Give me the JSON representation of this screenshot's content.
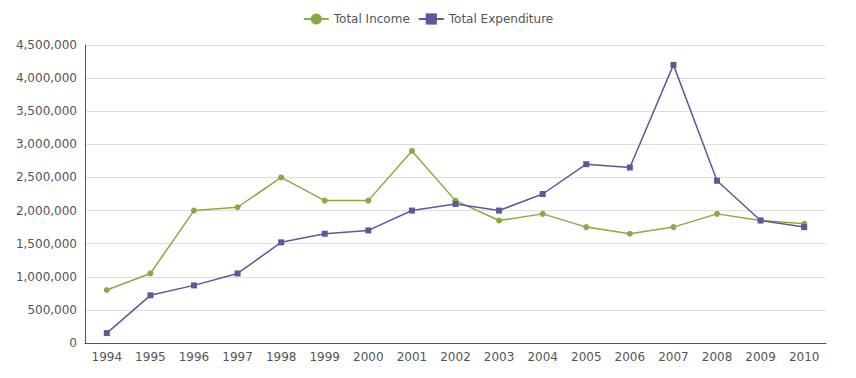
{
  "chart_data": {
    "type": "line",
    "categories": [
      "1994",
      "1995",
      "1996",
      "1997",
      "1998",
      "1999",
      "2000",
      "2001",
      "2002",
      "2003",
      "2004",
      "2005",
      "2006",
      "2007",
      "2008",
      "2009",
      "2010"
    ],
    "series": [
      {
        "name": "Total Income",
        "color": "#8aaa40",
        "marker": "circle",
        "values": [
          800000,
          1050000,
          2000000,
          2050000,
          2500000,
          2150000,
          2150000,
          2900000,
          2150000,
          1850000,
          1950000,
          1750000,
          1650000,
          1750000,
          1950000,
          1850000,
          1800000
        ]
      },
      {
        "name": "Total Expenditure",
        "color": "#5a5a9a",
        "marker": "square",
        "values": [
          150000,
          720000,
          870000,
          1050000,
          1520000,
          1650000,
          1700000,
          2000000,
          2100000,
          2000000,
          2250000,
          2700000,
          2650000,
          4200000,
          2450000,
          1850000,
          1750000
        ]
      }
    ],
    "ylim": [
      0,
      4500000
    ],
    "yticks": [
      0,
      {
        "value": 500000,
        "label": "500,000"
      },
      {
        "value": 1000000,
        "label": "1,000,000"
      },
      {
        "value": 1500000,
        "label": "1,500,000"
      },
      {
        "value": 2000000,
        "label": "2,000,000"
      },
      {
        "value": 2500000,
        "label": "2,500,000"
      },
      {
        "value": 3000000,
        "label": "3,000,000"
      },
      {
        "value": 3500000,
        "label": "3,500,000"
      },
      {
        "value": 4000000,
        "label": "4,000,000"
      },
      {
        "value": 4500000,
        "label": "4,500,000"
      }
    ],
    "grid": true,
    "legend": "top"
  }
}
